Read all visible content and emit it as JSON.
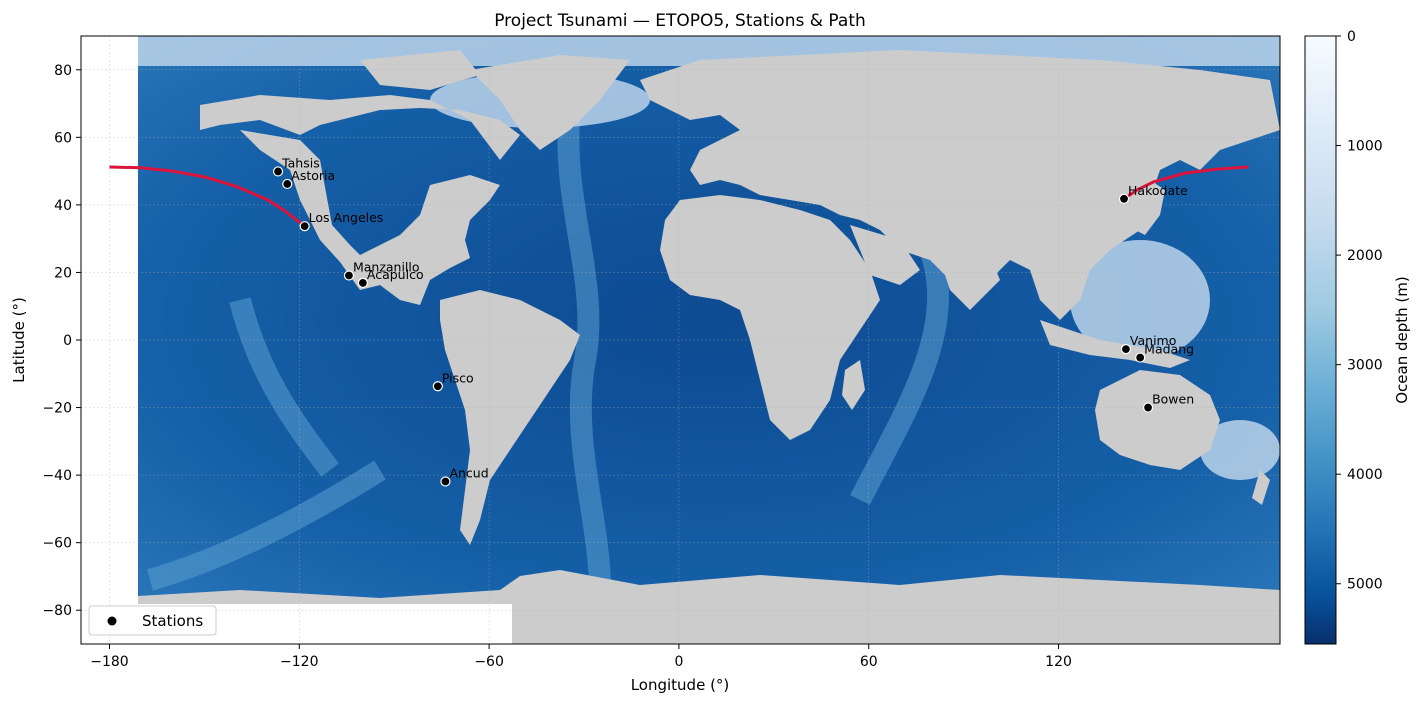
{
  "title": "Project Tsunami — ETOPO5, Stations & Path",
  "map": {
    "xlabel": "Longitude (°)",
    "ylabel": "Latitude (°)",
    "xlim": [
      -189,
      190
    ],
    "ylim": [
      -90,
      90
    ],
    "xticks": [
      -180,
      -120,
      -60,
      0,
      60,
      120
    ],
    "xtick_labels": [
      "−180",
      "−120",
      "−60",
      "0",
      "60",
      "120"
    ],
    "yticks": [
      -80,
      -60,
      -40,
      -20,
      0,
      20,
      40,
      60,
      80
    ],
    "ytick_labels": [
      "−80",
      "−60",
      "−40",
      "−20",
      "0",
      "20",
      "40",
      "60",
      "80"
    ],
    "grid": true,
    "land_color": "#cccccc",
    "ocean_colormap": "Blues",
    "path_color": "#dc143c"
  },
  "colorbar": {
    "label": "Ocean depth (m)",
    "range": [
      0,
      5550
    ],
    "ticks": [
      0,
      1000,
      2000,
      3000,
      4000,
      5000
    ],
    "tick_labels": [
      "0",
      "1000",
      "2000",
      "3000",
      "4000",
      "5000"
    ],
    "color_top": "#f7fbff",
    "color_bottom": "#08306b"
  },
  "legend": {
    "label": "Stations",
    "position": "lower-left"
  },
  "chart_data": {
    "type": "scatter",
    "stations": [
      {
        "name": "Tahsis",
        "lon": -126.7,
        "lat": 49.9
      },
      {
        "name": "Astoria",
        "lon": -123.8,
        "lat": 46.2
      },
      {
        "name": "Los Angeles",
        "lon": -118.3,
        "lat": 33.7
      },
      {
        "name": "Manzanillo",
        "lon": -104.3,
        "lat": 19.1
      },
      {
        "name": "Acapulco",
        "lon": -99.9,
        "lat": 16.9
      },
      {
        "name": "Pisco",
        "lon": -76.2,
        "lat": -13.7
      },
      {
        "name": "Ancud",
        "lon": -73.8,
        "lat": -41.9
      },
      {
        "name": "Hakodate",
        "lon": 140.7,
        "lat": 41.8
      },
      {
        "name": "Vanimo",
        "lon": 141.3,
        "lat": -2.7
      },
      {
        "name": "Madang",
        "lon": 145.8,
        "lat": -5.2
      },
      {
        "name": "Bowen",
        "lon": 148.3,
        "lat": -20.0
      }
    ],
    "path": [
      {
        "lon": -180,
        "lat": 51.2
      },
      {
        "lon": -170,
        "lat": 51.0
      },
      {
        "lon": -160,
        "lat": 50.0
      },
      {
        "lon": -150,
        "lat": 48.3
      },
      {
        "lon": -140,
        "lat": 45.5
      },
      {
        "lon": -130,
        "lat": 41.5
      },
      {
        "lon": -125,
        "lat": 38.5
      },
      {
        "lon": -118.3,
        "lat": 33.7
      }
    ],
    "path_west": [
      {
        "lon": 140.7,
        "lat": 41.8
      },
      {
        "lon": 145,
        "lat": 44.5
      },
      {
        "lon": 150,
        "lat": 46.8
      },
      {
        "lon": 160,
        "lat": 49.4
      },
      {
        "lon": 170,
        "lat": 50.6
      },
      {
        "lon": 180,
        "lat": 51.2
      }
    ]
  }
}
